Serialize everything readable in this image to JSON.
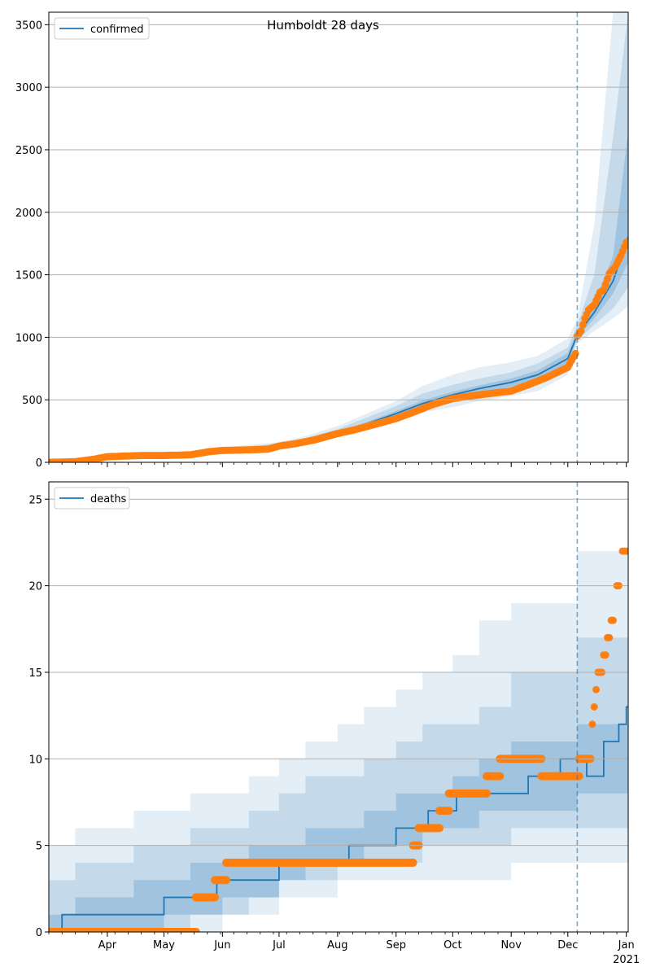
{
  "chart_data": {
    "title": "Humboldt 28 days",
    "x_axis": {
      "ticks": [
        "Apr",
        "May",
        "Jun",
        "Jul",
        "Aug",
        "Sep",
        "Oct",
        "Nov",
        "Dec",
        "Jan"
      ],
      "year_label": "2021",
      "range": [
        "2020-03-01",
        "2021-01-02"
      ]
    },
    "forecast_start": "2020-12-06",
    "colors": {
      "model": "#1f77b4",
      "observed": "#ff7f0e",
      "grid": "#b0b0b0"
    },
    "panels": [
      {
        "type": "line",
        "legend_label": "confirmed",
        "legend_position": "upper-left",
        "ylim": [
          0,
          3600
        ],
        "yticks": [
          "0",
          "500",
          "1000",
          "1500",
          "2000",
          "2500",
          "3000",
          "3500"
        ],
        "grid": true,
        "model": {
          "x": [
            "2020-03-01",
            "2020-03-15",
            "2020-04-01",
            "2020-04-15",
            "2020-05-01",
            "2020-05-15",
            "2020-06-01",
            "2020-06-15",
            "2020-07-01",
            "2020-07-15",
            "2020-08-01",
            "2020-08-15",
            "2020-09-01",
            "2020-09-15",
            "2020-10-01",
            "2020-10-15",
            "2020-11-01",
            "2020-11-15",
            "2020-12-01",
            "2020-12-06",
            "2020-12-15",
            "2020-12-25",
            "2021-01-02"
          ],
          "y": [
            0,
            10,
            35,
            55,
            60,
            70,
            100,
            115,
            135,
            170,
            230,
            300,
            390,
            470,
            540,
            590,
            640,
            700,
            830,
            1020,
            1200,
            1450,
            1800
          ]
        },
        "bands": [
          {
            "lo": [
              0,
              5,
              25,
              45,
              50,
              60,
              85,
              100,
              120,
              150,
              210,
              270,
              330,
              400,
              440,
              490,
              530,
              570,
              700,
              950,
              1050,
              1150,
              1250
            ],
            "hi": [
              5,
              20,
              50,
              70,
              75,
              90,
              120,
              140,
              160,
              210,
              290,
              380,
              490,
              610,
              700,
              760,
              800,
              850,
              990,
              1150,
              1900,
              3600,
              3600
            ]
          },
          {
            "lo": [
              0,
              7,
              28,
              48,
              54,
              64,
              90,
              106,
              126,
              158,
              218,
              282,
              352,
              430,
              480,
              525,
              570,
              615,
              740,
              975,
              1100,
              1230,
              1400
            ],
            "hi": [
              3,
              15,
              44,
              64,
              68,
              82,
              112,
              128,
              150,
              195,
              265,
              350,
              450,
              550,
              620,
              670,
              720,
              790,
              920,
              1100,
              1500,
              2600,
              3600
            ]
          },
          {
            "lo": [
              0,
              8,
              31,
              51,
              57,
              67,
              95,
              110,
              130,
              164,
              224,
              291,
              372,
              450,
              510,
              560,
              605,
              660,
              790,
              1000,
              1150,
              1350,
              1600
            ],
            "hi": [
              1,
              12,
              40,
              60,
              64,
              76,
              106,
              121,
              141,
              178,
              240,
              315,
              410,
              495,
              565,
              615,
              670,
              735,
              875,
              1050,
              1280,
              1650,
              2650
            ]
          }
        ],
        "observed": {
          "x": [
            "2020-03-01",
            "2020-03-15",
            "2020-03-25",
            "2020-04-01",
            "2020-04-10",
            "2020-04-20",
            "2020-05-01",
            "2020-05-15",
            "2020-05-25",
            "2020-06-01",
            "2020-06-15",
            "2020-06-25",
            "2020-07-01",
            "2020-07-10",
            "2020-07-20",
            "2020-08-01",
            "2020-08-10",
            "2020-08-20",
            "2020-09-01",
            "2020-09-10",
            "2020-09-20",
            "2020-10-01",
            "2020-10-15",
            "2020-11-01",
            "2020-11-10",
            "2020-11-20",
            "2020-12-01",
            "2020-12-05",
            "2020-12-06",
            "2020-12-08",
            "2020-12-10",
            "2020-12-12",
            "2020-12-15",
            "2020-12-18",
            "2020-12-20",
            "2020-12-23",
            "2020-12-26",
            "2020-12-29",
            "2021-01-01"
          ],
          "y": [
            0,
            5,
            25,
            45,
            50,
            55,
            55,
            60,
            85,
            95,
            100,
            105,
            130,
            150,
            180,
            230,
            260,
            300,
            350,
            400,
            460,
            510,
            540,
            570,
            620,
            680,
            760,
            870,
            1010,
            1050,
            1150,
            1220,
            1260,
            1360,
            1380,
            1510,
            1560,
            1650,
            1760
          ]
        }
      },
      {
        "type": "line",
        "legend_label": "deaths",
        "legend_position": "upper-left",
        "ylim": [
          0,
          26
        ],
        "yticks": [
          "0",
          "5",
          "10",
          "15",
          "20",
          "25"
        ],
        "grid": true,
        "model": {
          "x": [
            "2020-03-01",
            "2020-03-08",
            "2020-03-08",
            "2020-05-01",
            "2020-05-01",
            "2020-05-29",
            "2020-05-29",
            "2020-07-01",
            "2020-07-01",
            "2020-08-07",
            "2020-08-07",
            "2020-09-01",
            "2020-09-01",
            "2020-09-18",
            "2020-09-18",
            "2020-10-03",
            "2020-10-03",
            "2020-11-10",
            "2020-11-10",
            "2020-11-27",
            "2020-11-27",
            "2020-12-11",
            "2020-12-11",
            "2020-12-20",
            "2020-12-20",
            "2020-12-28",
            "2020-12-28",
            "2021-01-01",
            "2021-01-01",
            "2021-01-02"
          ],
          "y": [
            0,
            0,
            1,
            1,
            2,
            2,
            3,
            3,
            4,
            4,
            5,
            5,
            6,
            6,
            7,
            7,
            8,
            8,
            9,
            9,
            10,
            10,
            9,
            9,
            11,
            11,
            12,
            12,
            13,
            13
          ]
        },
        "bands": [
          {
            "lo": [
              0,
              0,
              0,
              0,
              0,
              0,
              1,
              1,
              2,
              2,
              3,
              3,
              3,
              3,
              3,
              3,
              4,
              4,
              3
            ],
            "hi": [
              5,
              6,
              6,
              7,
              7,
              8,
              8,
              9,
              10,
              11,
              12,
              13,
              14,
              15,
              16,
              18,
              19,
              22,
              26
            ]
          },
          {
            "lo": [
              0,
              0,
              0,
              0,
              0,
              1,
              1,
              2,
              3,
              3,
              4,
              4,
              4,
              5,
              5,
              5,
              6,
              6,
              7
            ],
            "hi": [
              3,
              4,
              4,
              5,
              5,
              6,
              6,
              7,
              8,
              9,
              9,
              10,
              11,
              12,
              12,
              13,
              15,
              17,
              20
            ]
          },
          {
            "lo": [
              0,
              0,
              0,
              0,
              1,
              1,
              2,
              2,
              3,
              4,
              4,
              5,
              5,
              6,
              6,
              7,
              7,
              8,
              9
            ],
            "hi": [
              1,
              2,
              2,
              3,
              3,
              4,
              4,
              5,
              5,
              6,
              6,
              7,
              8,
              8,
              9,
              10,
              11,
              12,
              15
            ]
          }
        ],
        "band_x": [
          "2020-03-01",
          "2020-03-15",
          "2020-04-01",
          "2020-04-15",
          "2020-05-01",
          "2020-05-15",
          "2020-06-01",
          "2020-06-15",
          "2020-07-01",
          "2020-07-15",
          "2020-08-01",
          "2020-08-15",
          "2020-09-01",
          "2020-09-15",
          "2020-10-01",
          "2020-10-15",
          "2020-11-01",
          "2020-12-06",
          "2021-01-02"
        ],
        "observed": {
          "segments": [
            {
              "from": "2020-03-01",
              "to": "2020-05-18",
              "y": 0
            },
            {
              "from": "2020-05-18",
              "to": "2020-05-28",
              "y": 2
            },
            {
              "from": "2020-05-28",
              "to": "2020-06-03",
              "y": 3
            },
            {
              "from": "2020-06-03",
              "to": "2020-09-10",
              "y": 4
            },
            {
              "from": "2020-09-10",
              "to": "2020-09-13",
              "y": 5
            },
            {
              "from": "2020-09-13",
              "to": "2020-09-24",
              "y": 6
            },
            {
              "from": "2020-09-24",
              "to": "2020-09-29",
              "y": 7
            },
            {
              "from": "2020-09-29",
              "to": "2020-10-19",
              "y": 8
            },
            {
              "from": "2020-10-19",
              "to": "2020-10-26",
              "y": 9
            },
            {
              "from": "2020-10-26",
              "to": "2020-11-17",
              "y": 10
            },
            {
              "from": "2020-11-17",
              "to": "2020-12-07",
              "y": 9
            },
            {
              "from": "2020-12-07",
              "to": "2020-12-13",
              "y": 10
            }
          ],
          "points": [
            {
              "x": "2020-12-14",
              "y": 12
            },
            {
              "x": "2020-12-15",
              "y": 13
            },
            {
              "x": "2020-12-16",
              "y": 14
            },
            {
              "x": "2020-12-17",
              "y": 15
            },
            {
              "x": "2020-12-18",
              "y": 15
            },
            {
              "x": "2020-12-19",
              "y": 15
            },
            {
              "x": "2020-12-20",
              "y": 16
            },
            {
              "x": "2020-12-21",
              "y": 16
            },
            {
              "x": "2020-12-22",
              "y": 17
            },
            {
              "x": "2020-12-23",
              "y": 17
            },
            {
              "x": "2020-12-24",
              "y": 18
            },
            {
              "x": "2020-12-25",
              "y": 18
            },
            {
              "x": "2020-12-27",
              "y": 20
            },
            {
              "x": "2020-12-28",
              "y": 20
            },
            {
              "x": "2020-12-30",
              "y": 22
            },
            {
              "x": "2020-12-31",
              "y": 22
            },
            {
              "x": "2021-01-01",
              "y": 22
            }
          ]
        }
      }
    ]
  }
}
